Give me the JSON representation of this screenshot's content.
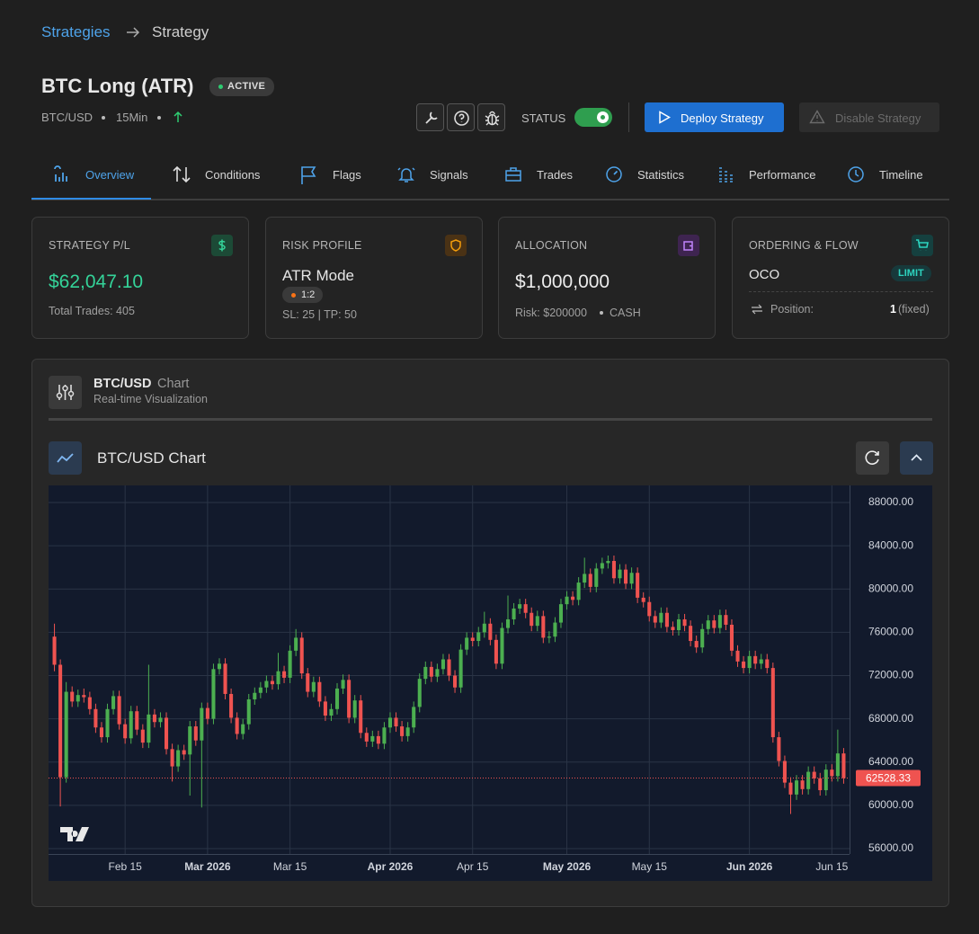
{
  "breadcrumb": [
    "Strategies",
    "Strategy"
  ],
  "header": {
    "title": "BTC Long (ATR)",
    "badge": "ACTIVE",
    "pair": "BTC/USD",
    "timeframe": "15Min",
    "status_label": "STATUS",
    "deploy": "Deploy Strategy",
    "disable": "Disable Strategy"
  },
  "tabs": [
    "Overview",
    "Conditions",
    "Flags",
    "Signals",
    "Trades",
    "Statistics",
    "Performance",
    "Timeline"
  ],
  "cards": [
    {
      "title": "STRATEGY P/L",
      "value": "$62,047.10",
      "note": "Total Trades: 405"
    },
    {
      "title": "RISK PROFILE",
      "value": "ATR Mode",
      "tag": "1:2",
      "note": "SL: 25 | TP: 50"
    },
    {
      "title": "ALLOCATION",
      "value": "$1,000,000",
      "note": "Risk: $200000",
      "note2": "CASH"
    },
    {
      "title": "ORDERING & FLOW",
      "value": "OCO",
      "tag": "LIMIT",
      "row_label": "Position:",
      "row_value": "1",
      "row_suffix": "(fixed)"
    }
  ],
  "panel": {
    "title": "BTC/USD",
    "title_suffix": "Chart",
    "subtitle": "Real-time Visualization",
    "chart_title": "BTC/USD Chart"
  },
  "chart_data": {
    "type": "candlestick",
    "up_color": "#4caf50",
    "down_color": "#ef5350",
    "grid": true,
    "xlim": [
      "2026-02-02",
      "2026-06-18"
    ],
    "xticks": [
      {
        "value": "2026-02-15",
        "label": "Feb 15"
      },
      {
        "value": "2026-03-01",
        "label": "Mar 2026"
      },
      {
        "value": "2026-03-15",
        "label": "Mar 15"
      },
      {
        "value": "2026-04-01",
        "label": "Apr 2026"
      },
      {
        "value": "2026-04-15",
        "label": "Apr 15"
      },
      {
        "value": "2026-05-01",
        "label": "May 2026"
      },
      {
        "value": "2026-05-15",
        "label": "May 15"
      },
      {
        "value": "2026-06-01",
        "label": "Jun 2026"
      },
      {
        "value": "2026-06-15",
        "label": "Jun 15"
      }
    ],
    "ylim": [
      55500,
      89500
    ],
    "yticks": [
      {
        "value": 56000,
        "label": "56000.00"
      },
      {
        "value": 60000,
        "label": "60000.00"
      },
      {
        "value": 64000,
        "label": "64000.00"
      },
      {
        "value": 68000,
        "label": "68000.00"
      },
      {
        "value": 72000,
        "label": "72000.00"
      },
      {
        "value": 76000,
        "label": "76000.00"
      },
      {
        "value": 80000,
        "label": "80000.00"
      },
      {
        "value": 84000,
        "label": "84000.00"
      },
      {
        "value": 88000,
        "label": "88000.00"
      }
    ],
    "x": [
      "2026-02-03",
      "2026-02-04",
      "2026-02-05",
      "2026-02-06",
      "2026-02-07",
      "2026-02-08",
      "2026-02-09",
      "2026-02-10",
      "2026-02-11",
      "2026-02-12",
      "2026-02-13",
      "2026-02-14",
      "2026-02-15",
      "2026-02-16",
      "2026-02-17",
      "2026-02-18",
      "2026-02-19",
      "2026-02-20",
      "2026-02-21",
      "2026-02-22",
      "2026-02-23",
      "2026-02-24",
      "2026-02-25",
      "2026-02-26",
      "2026-02-27",
      "2026-02-28",
      "2026-03-01",
      "2026-03-02",
      "2026-03-03",
      "2026-03-04",
      "2026-03-05",
      "2026-03-06",
      "2026-03-07",
      "2026-03-08",
      "2026-03-09",
      "2026-03-10",
      "2026-03-11",
      "2026-03-12",
      "2026-03-13",
      "2026-03-14",
      "2026-03-15",
      "2026-03-16",
      "2026-03-17",
      "2026-03-18",
      "2026-03-19",
      "2026-03-20",
      "2026-03-21",
      "2026-03-22",
      "2026-03-23",
      "2026-03-24",
      "2026-03-25",
      "2026-03-26",
      "2026-03-27",
      "2026-03-28",
      "2026-03-29",
      "2026-03-30",
      "2026-03-31",
      "2026-04-01",
      "2026-04-02",
      "2026-04-03",
      "2026-04-04",
      "2026-04-05",
      "2026-04-06",
      "2026-04-07",
      "2026-04-08",
      "2026-04-09",
      "2026-04-10",
      "2026-04-11",
      "2026-04-12",
      "2026-04-13",
      "2026-04-14",
      "2026-04-15",
      "2026-04-16",
      "2026-04-17",
      "2026-04-18",
      "2026-04-19",
      "2026-04-20",
      "2026-04-21",
      "2026-04-22",
      "2026-04-23",
      "2026-04-24",
      "2026-04-25",
      "2026-04-26",
      "2026-04-27",
      "2026-04-28",
      "2026-04-29",
      "2026-04-30",
      "2026-05-01",
      "2026-05-02",
      "2026-05-03",
      "2026-05-04",
      "2026-05-05",
      "2026-05-06",
      "2026-05-07",
      "2026-05-08",
      "2026-05-09",
      "2026-05-10",
      "2026-05-11",
      "2026-05-12",
      "2026-05-13",
      "2026-05-14",
      "2026-05-15",
      "2026-05-16",
      "2026-05-17",
      "2026-05-18",
      "2026-05-19",
      "2026-05-20",
      "2026-05-21",
      "2026-05-22",
      "2026-05-23",
      "2026-05-24",
      "2026-05-25",
      "2026-05-26",
      "2026-05-27",
      "2026-05-28",
      "2026-05-29",
      "2026-05-30",
      "2026-05-31",
      "2026-06-01",
      "2026-06-02",
      "2026-06-03",
      "2026-06-04",
      "2026-06-05",
      "2026-06-06",
      "2026-06-07",
      "2026-06-08",
      "2026-06-09",
      "2026-06-10",
      "2026-06-11",
      "2026-06-12",
      "2026-06-13",
      "2026-06-14",
      "2026-06-15",
      "2026-06-16",
      "2026-06-17"
    ],
    "open": [
      75600,
      73000,
      62600,
      70500,
      69600,
      70200,
      70000,
      68900,
      67200,
      66300,
      68900,
      70100,
      67500,
      66200,
      68700,
      67000,
      65800,
      68400,
      67700,
      68100,
      65200,
      63600,
      65100,
      64700,
      67300,
      66000,
      69000,
      68000,
      72600,
      73100,
      70300,
      68100,
      66600,
      67500,
      69800,
      70400,
      70900,
      71500,
      71200,
      72400,
      71800,
      74300,
      75500,
      72200,
      70500,
      71400,
      69600,
      68300,
      68900,
      70800,
      71600,
      68100,
      69700,
      66700,
      65900,
      66400,
      65700,
      67200,
      68100,
      67300,
      66400,
      67200,
      69100,
      71700,
      72800,
      71900,
      72600,
      73500,
      72000,
      70900,
      74400,
      75500,
      75200,
      76000,
      76800,
      75300,
      73100,
      76400,
      77200,
      78200,
      78600,
      77800,
      76600,
      77500,
      75500,
      75600,
      76900,
      78600,
      79300,
      79000,
      80600,
      81400,
      80200,
      81900,
      82400,
      82600,
      81000,
      81800,
      80500,
      81500,
      79200,
      78800,
      77500,
      76900,
      77800,
      76500,
      76200,
      77200,
      76600,
      75200,
      74600,
      76300,
      77100,
      76400,
      77600,
      76700,
      74300,
      73300,
      72700,
      73800,
      73100,
      73500,
      72700,
      66300,
      64100,
      62100,
      61000,
      62300,
      61500,
      63100,
      62500,
      61400,
      63300,
      62700,
      64800
    ],
    "high": [
      76800,
      73500,
      71400,
      71000,
      70700,
      70800,
      70500,
      69400,
      67700,
      69400,
      70600,
      70600,
      68000,
      69200,
      69200,
      67500,
      73000,
      68900,
      68600,
      68600,
      65700,
      65600,
      65600,
      67800,
      67800,
      69500,
      69500,
      73100,
      73600,
      73600,
      70800,
      68600,
      68000,
      70300,
      70900,
      71400,
      72000,
      72000,
      74100,
      72900,
      74800,
      76300,
      76000,
      72700,
      71900,
      71900,
      70100,
      69400,
      71300,
      72100,
      72100,
      70200,
      70200,
      67200,
      66900,
      66900,
      67700,
      68600,
      68600,
      67800,
      67700,
      69600,
      72200,
      73300,
      73300,
      73100,
      74000,
      74000,
      72500,
      74900,
      76000,
      76000,
      76500,
      77900,
      77300,
      75800,
      76900,
      79400,
      78700,
      79100,
      79100,
      78300,
      78000,
      78000,
      76100,
      77400,
      79100,
      79800,
      79800,
      81100,
      82900,
      81900,
      82400,
      82900,
      83100,
      83100,
      82300,
      82300,
      82000,
      82000,
      79700,
      79300,
      78000,
      78300,
      78300,
      77000,
      77700,
      77700,
      77100,
      75700,
      76800,
      77600,
      77600,
      78100,
      78100,
      77200,
      74800,
      73800,
      74300,
      74300,
      74000,
      74000,
      73200,
      66800,
      64600,
      62600,
      62800,
      62800,
      63600,
      63600,
      63000,
      63800,
      63800,
      67000,
      65300
    ],
    "low": [
      72400,
      59900,
      62100,
      69100,
      69100,
      69500,
      68400,
      66700,
      65800,
      65800,
      68400,
      67000,
      65700,
      65700,
      66500,
      65300,
      65300,
      67200,
      67200,
      64700,
      62200,
      63100,
      64200,
      60900,
      65500,
      59800,
      67500,
      67500,
      72100,
      69800,
      67600,
      66100,
      66100,
      67000,
      69300,
      69900,
      70400,
      70700,
      70700,
      71300,
      71300,
      73800,
      71700,
      70000,
      70000,
      69100,
      67800,
      67800,
      68400,
      70300,
      67600,
      67600,
      66200,
      65400,
      65400,
      65200,
      65200,
      66700,
      66800,
      65900,
      65900,
      66700,
      68600,
      71200,
      71400,
      71400,
      72100,
      71500,
      70400,
      70400,
      73900,
      74700,
      74700,
      75500,
      74800,
      72600,
      72600,
      75900,
      76700,
      77700,
      77300,
      76100,
      76100,
      75000,
      75000,
      75100,
      76400,
      78100,
      78500,
      78500,
      80100,
      79700,
      79700,
      81400,
      81900,
      80500,
      80500,
      80000,
      80000,
      78700,
      78300,
      77000,
      76400,
      76400,
      76000,
      75700,
      75700,
      76100,
      74700,
      74100,
      74100,
      75800,
      75900,
      75900,
      76200,
      73800,
      72800,
      72200,
      72200,
      72600,
      72600,
      72200,
      65800,
      63600,
      61600,
      59200,
      60500,
      61000,
      61000,
      62000,
      60900,
      60900,
      62200,
      62200,
      62000
    ],
    "close": [
      73000,
      62600,
      70500,
      69600,
      70200,
      70000,
      68900,
      67200,
      66300,
      68900,
      70100,
      67500,
      66200,
      68700,
      67000,
      65800,
      68400,
      67700,
      68100,
      65200,
      63600,
      65100,
      64700,
      67300,
      66000,
      69000,
      68000,
      72600,
      73100,
      70300,
      68100,
      66600,
      67500,
      69800,
      70400,
      70900,
      71500,
      71200,
      72400,
      71800,
      74300,
      75500,
      72200,
      70500,
      71400,
      69600,
      68300,
      68900,
      70800,
      71600,
      68100,
      69700,
      66700,
      65900,
      66400,
      65700,
      67200,
      68100,
      67300,
      66400,
      67200,
      69100,
      71700,
      72800,
      71900,
      72600,
      73500,
      72000,
      70900,
      74400,
      75500,
      75200,
      76000,
      76800,
      75300,
      73100,
      76400,
      77200,
      78200,
      78600,
      77800,
      76600,
      77500,
      75500,
      75600,
      76900,
      78600,
      79300,
      79000,
      80600,
      81400,
      80200,
      81900,
      82400,
      82600,
      81000,
      81800,
      80500,
      81500,
      79200,
      78800,
      77500,
      76900,
      77800,
      76500,
      76200,
      77200,
      76600,
      75200,
      74600,
      76300,
      77100,
      76400,
      77600,
      76700,
      74300,
      73300,
      72700,
      73800,
      73100,
      73500,
      72700,
      66300,
      64100,
      62100,
      61000,
      62300,
      61500,
      63100,
      62500,
      61400,
      63300,
      62700,
      64800,
      62528.33
    ]
  }
}
